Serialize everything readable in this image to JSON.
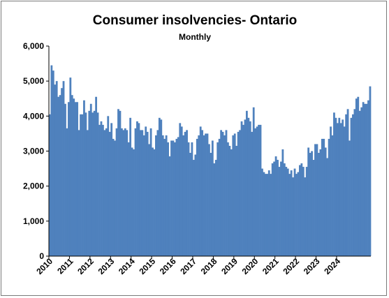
{
  "chart_data": {
    "type": "bar",
    "title": "Consumer insolvencies- Ontario",
    "subtitle": "Monthly",
    "xlabel": "",
    "ylabel": "",
    "ylim": [
      0,
      6000
    ],
    "yticks": [
      "0",
      "1,000",
      "2,000",
      "3,000",
      "4,000",
      "5,000",
      "6,000"
    ],
    "ytick_values": [
      0,
      1000,
      2000,
      3000,
      4000,
      5000,
      6000
    ],
    "xtick_labels": [
      "2010",
      "2011",
      "2012",
      "2013",
      "2014",
      "2015",
      "2016",
      "2017",
      "2018",
      "2019",
      "2020",
      "2021",
      "2022",
      "2023",
      "2024"
    ],
    "grid": false,
    "legend": "none",
    "bar_color": "#4f81bd",
    "start": "2010-01",
    "values": [
      4050,
      5450,
      5300,
      4900,
      5000,
      4550,
      4600,
      4800,
      5000,
      4350,
      3650,
      4400,
      5100,
      4600,
      4500,
      4400,
      4400,
      3600,
      4050,
      4050,
      4450,
      4100,
      3600,
      4150,
      4350,
      4100,
      4150,
      4550,
      4100,
      3750,
      3850,
      3750,
      3600,
      3650,
      4000,
      3550,
      3800,
      3350,
      3300,
      3650,
      4200,
      4150,
      3650,
      3600,
      3650,
      3600,
      3250,
      3950,
      3100,
      3050,
      3650,
      3850,
      3800,
      3600,
      3600,
      3450,
      3700,
      3550,
      3200,
      3650,
      3100,
      3050,
      3450,
      3600,
      3950,
      3900,
      3450,
      3350,
      3450,
      3250,
      2850,
      3300,
      3300,
      3250,
      3350,
      3400,
      3800,
      3700,
      3450,
      3550,
      3600,
      3250,
      2950,
      3250,
      2750,
      2900,
      3350,
      3450,
      3700,
      3600,
      3450,
      3500,
      3500,
      3200,
      2950,
      3300,
      2650,
      2750,
      3250,
      3350,
      3600,
      3550,
      3450,
      3600,
      3250,
      3150,
      3050,
      3450,
      3500,
      3150,
      3550,
      3600,
      3850,
      3750,
      3900,
      4150,
      3950,
      3850,
      3550,
      4250,
      3650,
      3700,
      3750,
      3750,
      2500,
      2400,
      2350,
      2350,
      2450,
      2350,
      2650,
      2700,
      2850,
      2750,
      2550,
      2700,
      3050,
      2650,
      2550,
      2500,
      2350,
      2450,
      2250,
      2500,
      2350,
      2400,
      2600,
      2650,
      2550,
      2250,
      2550,
      3100,
      2950,
      3000,
      2750,
      3200,
      3200,
      2950,
      3050,
      3350,
      3350,
      3100,
      2800,
      3350,
      3700,
      3450,
      4100,
      3950,
      3800,
      3950,
      3800,
      3900,
      3700,
      4050,
      4200,
      3300,
      3950,
      4050,
      4200,
      4500,
      4550,
      4150,
      4250,
      4400,
      4350,
      4350,
      4450,
      4850
    ]
  }
}
